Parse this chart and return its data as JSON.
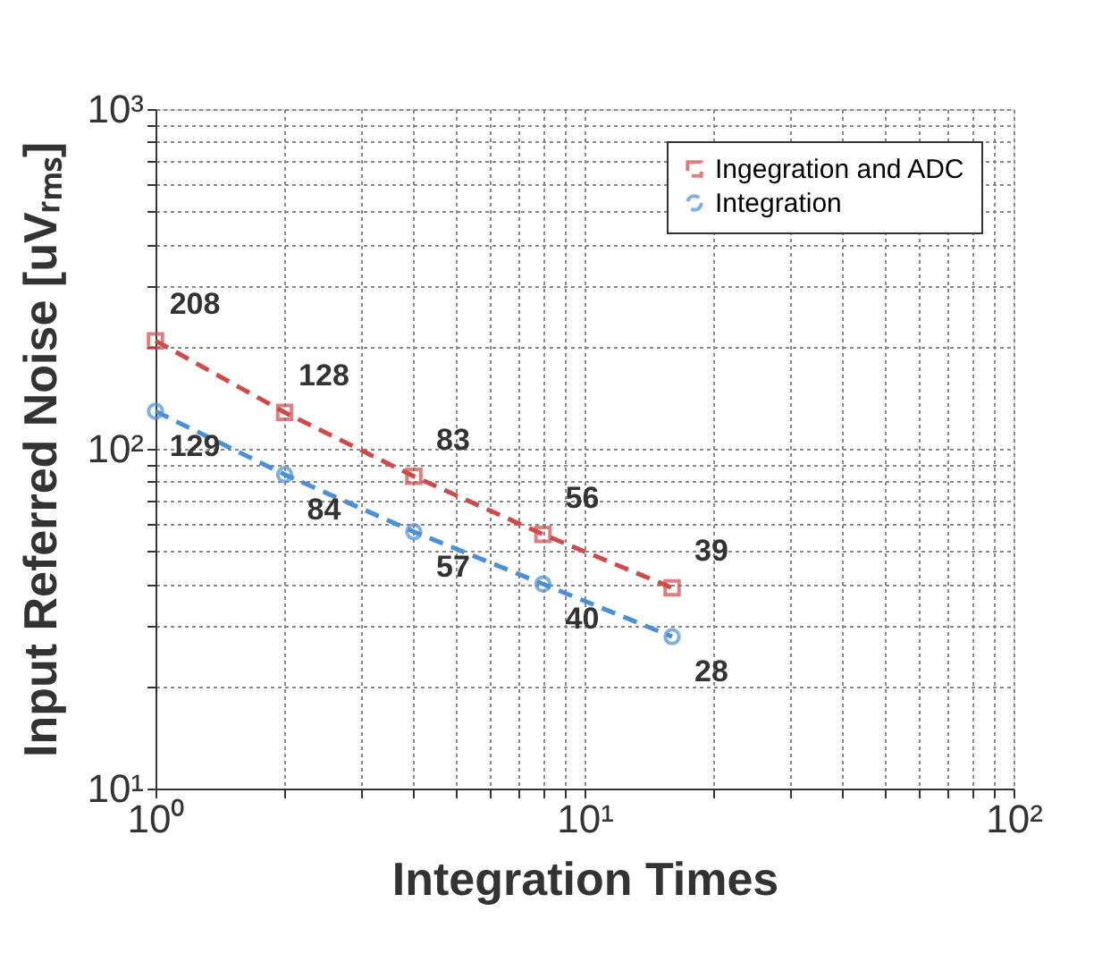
{
  "chart_data": {
    "type": "line",
    "xlabel": "Integration Times",
    "ylabel": "Input Referred Noise [uVᵣₘₛ]",
    "log": "xy",
    "grid": true,
    "legend": "top right",
    "data_labels": true,
    "x": [
      1,
      2,
      4,
      8,
      16
    ],
    "xlim": [
      1,
      100
    ],
    "ylim": [
      10,
      1000
    ],
    "xticks": [
      {
        "value": 1,
        "label": "10⁰"
      },
      {
        "value": 2,
        "label": null
      },
      {
        "value": 3,
        "label": null
      },
      {
        "value": 4,
        "label": null
      },
      {
        "value": 5,
        "label": null
      },
      {
        "value": 6,
        "label": null
      },
      {
        "value": 7,
        "label": null
      },
      {
        "value": 8,
        "label": null
      },
      {
        "value": 9,
        "label": null
      },
      {
        "value": 10,
        "label": "10¹"
      },
      {
        "value": 20,
        "label": null
      },
      {
        "value": 30,
        "label": null
      },
      {
        "value": 40,
        "label": null
      },
      {
        "value": 50,
        "label": null
      },
      {
        "value": 60,
        "label": null
      },
      {
        "value": 70,
        "label": null
      },
      {
        "value": 80,
        "label": null
      },
      {
        "value": 90,
        "label": null
      },
      {
        "value": 100,
        "label": "10²"
      }
    ],
    "yticks": [
      {
        "value": 10,
        "label": "10¹"
      },
      {
        "value": 20,
        "label": null
      },
      {
        "value": 30,
        "label": null
      },
      {
        "value": 40,
        "label": null
      },
      {
        "value": 50,
        "label": null
      },
      {
        "value": 60,
        "label": null
      },
      {
        "value": 70,
        "label": null
      },
      {
        "value": 80,
        "label": null
      },
      {
        "value": 90,
        "label": null
      },
      {
        "value": 100,
        "label": "10²"
      },
      {
        "value": 200,
        "label": null
      },
      {
        "value": 300,
        "label": null
      },
      {
        "value": 400,
        "label": null
      },
      {
        "value": 500,
        "label": null
      },
      {
        "value": 600,
        "label": null
      },
      {
        "value": 700,
        "label": null
      },
      {
        "value": 800,
        "label": null
      },
      {
        "value": 900,
        "label": null
      },
      {
        "value": 1000,
        "label": "10³"
      }
    ],
    "series": [
      {
        "name": "Ingegration and ADC",
        "color": "#d04a4a",
        "marker": "square",
        "line_style": "dashed",
        "values": [
          208,
          128,
          83,
          56,
          39
        ]
      },
      {
        "name": "Integration",
        "color": "#4a90d9",
        "marker": "circle",
        "line_style": "dashed",
        "values": [
          129,
          84,
          57,
          40,
          28
        ]
      }
    ]
  }
}
